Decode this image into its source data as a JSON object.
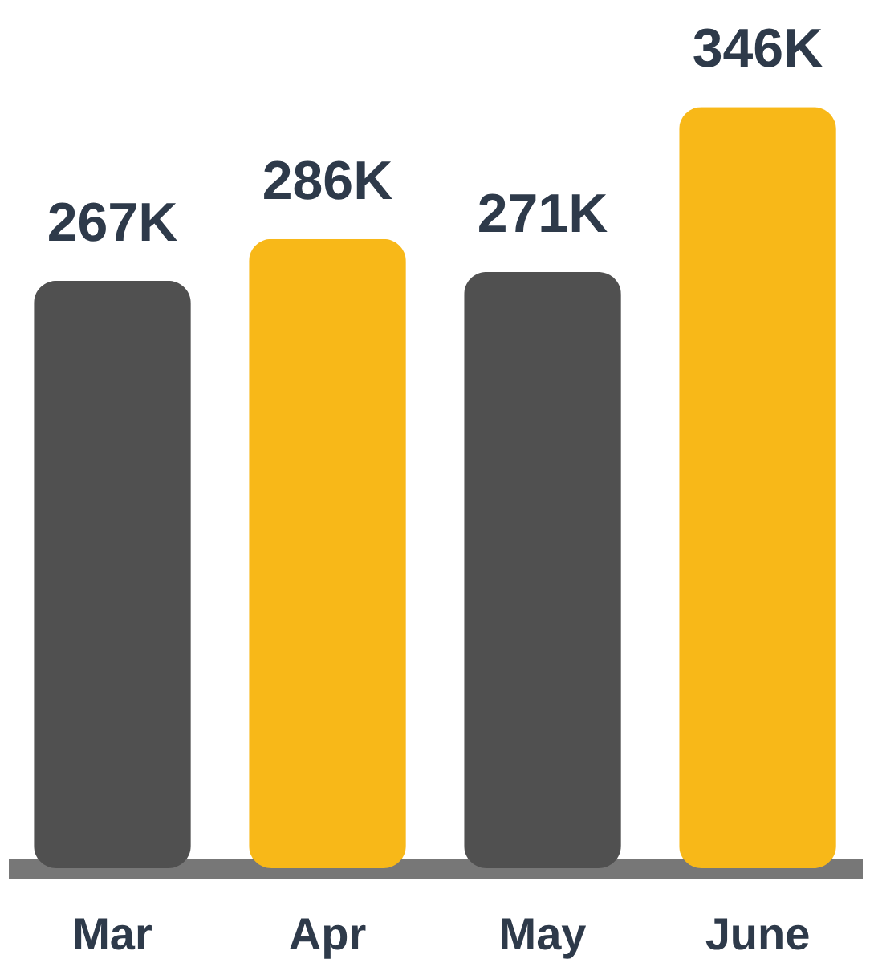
{
  "chart_data": {
    "type": "bar",
    "categories": [
      "Mar",
      "Apr",
      "May",
      "June"
    ],
    "values": [
      267,
      286,
      271,
      346
    ],
    "colors": [
      "#505050",
      "#f8b818",
      "#505050",
      "#f8b818"
    ],
    "value_labels": [
      "267K",
      "286K",
      "271K",
      "346K"
    ],
    "tick_labels": "x",
    "grid": false
  }
}
